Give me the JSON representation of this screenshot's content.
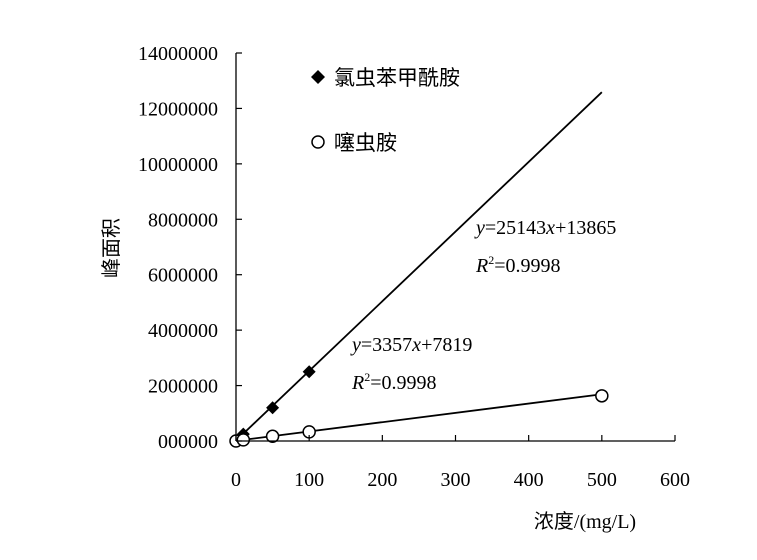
{
  "chart_data": {
    "type": "scatter",
    "title": "",
    "xlabel": "浓度/(mg/L)",
    "ylabel": "峰面积",
    "xlim": [
      0,
      600
    ],
    "ylim": [
      0,
      14000000
    ],
    "x_ticks": [
      "0",
      "100",
      "200",
      "300",
      "400",
      "500",
      "600"
    ],
    "y_ticks": [
      "000000",
      "2000000",
      "4000000",
      "6000000",
      "8000000",
      "10000000",
      "12000000",
      "14000000"
    ],
    "grid": false,
    "legend_position": "top-center",
    "series": [
      {
        "name": "氯虫苯甲酰胺",
        "marker": "filled-diamond",
        "x": [
          0,
          10,
          50,
          100
        ],
        "y": [
          0,
          250000,
          1200000,
          2500000
        ],
        "fit": {
          "slope": 25143,
          "intercept": 13865,
          "x_end": 500
        },
        "equation_parts": {
          "y": "y",
          "eq": "=25143",
          "x": "x",
          "rest": "+13865"
        },
        "r2_parts": {
          "r": "R",
          "sup": "2",
          "rest": "=0.9998"
        }
      },
      {
        "name": "噻虫胺",
        "marker": "open-circle",
        "x": [
          0,
          10,
          50,
          100,
          500
        ],
        "y": [
          0,
          40000,
          170000,
          330000,
          1630000
        ],
        "fit": {
          "slope": 3357,
          "intercept": 7819,
          "x_end": 500
        },
        "equation_parts": {
          "y": "y",
          "eq": "=3357",
          "x": "x",
          "rest": "+7819"
        },
        "r2_parts": {
          "r": "R",
          "sup": "2",
          "rest": "=0.9998"
        }
      }
    ]
  }
}
